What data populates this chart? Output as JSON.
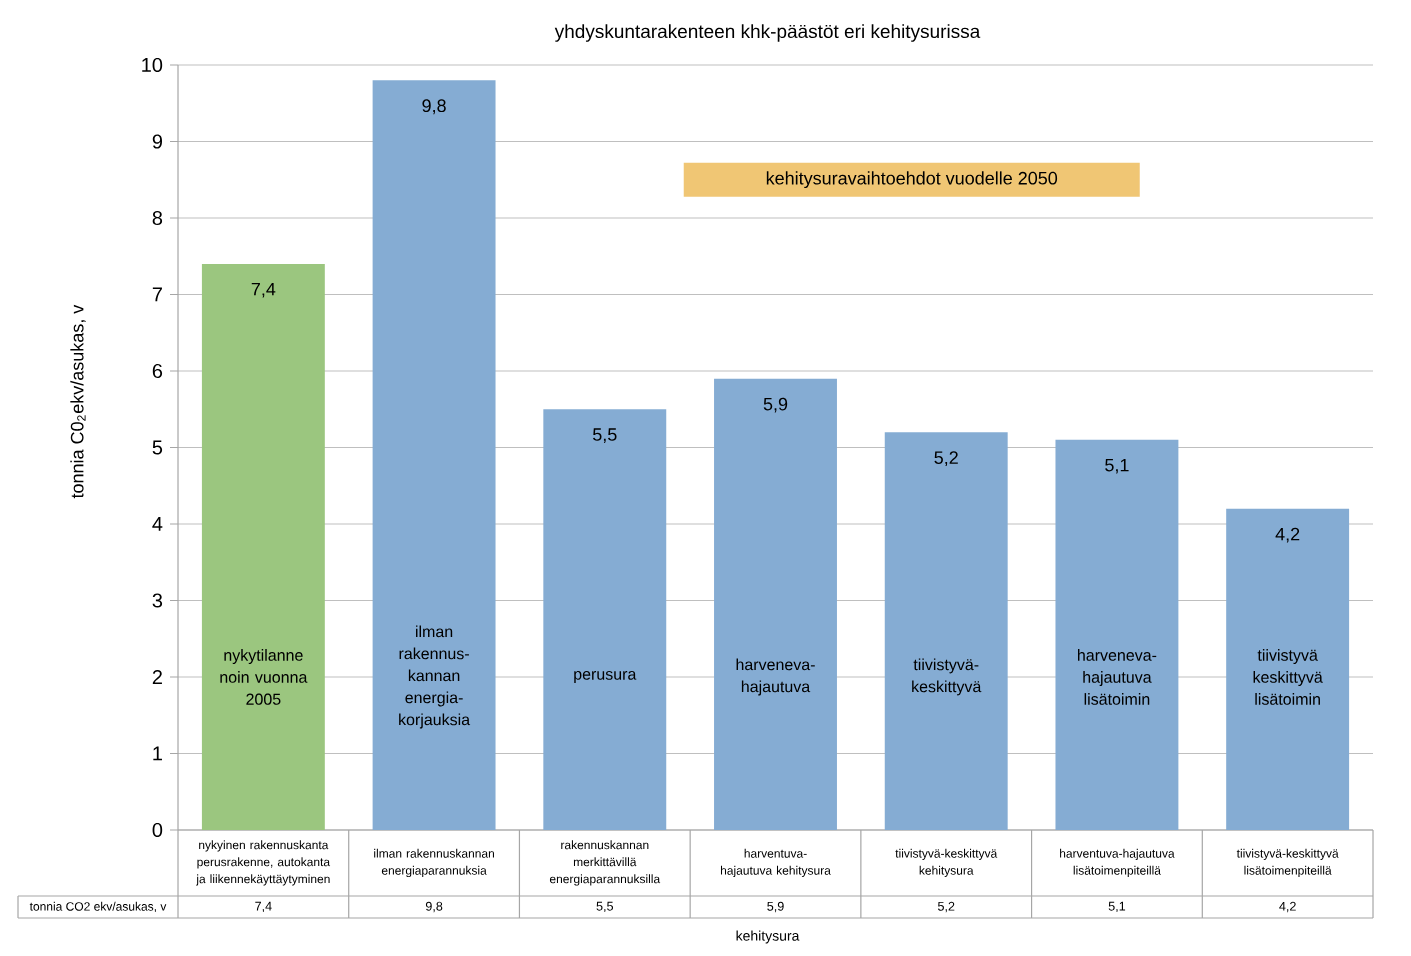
{
  "chart_data": {
    "type": "bar",
    "title": "yhdyskuntarakenteen khk-päästöt eri kehitysurissa",
    "xlabel": "kehitysura",
    "ylabel": "tonnia C0$_{2}$ekv/asukas, v",
    "categories": [
      "nykyinen rakennuskanta perusrakenne, autokanta ja liikennekäyttäytyminen",
      "ilman rakennuskannan energiaparannuksia",
      "rakennuskannan merkittävillä energiaparannuksilla",
      "harventuva-hajautuva kehitysura",
      "tiivistyvä-keskittyvä kehitysura",
      "harventuva-hajautuva lisätoimenpiteillä",
      "tiivistyvä-keskittyvä lisätoimenpiteillä"
    ],
    "values": [
      7.4,
      9.8,
      5.5,
      5.9,
      5.2,
      5.1,
      4.2
    ],
    "value_labels": [
      "7,4",
      "9,8",
      "5,5",
      "5,9",
      "5,2",
      "5,1",
      "4,2"
    ],
    "colors": [
      "#9bc67f",
      "#85acd3",
      "#85acd3",
      "#85acd3",
      "#85acd3",
      "#85acd3",
      "#85acd3"
    ],
    "ylim": [
      0,
      10
    ],
    "yticks": [
      0,
      1,
      2,
      3,
      4,
      5,
      6,
      7,
      8,
      9,
      10
    ],
    "grid": "y",
    "annotations": [
      "nykytilanne noin vuonna 2005",
      "ilman rakennus-kannan energia-korjauksia",
      "perusura",
      "harveneva-hajautuva",
      "tiivistyvä-keskittyvä",
      "harveneva-hajautuva lisätoimin",
      "tiivistyvä keskittyvä lisätoimin",
      "kehitysuravaihtoehdot vuodelle 2050",
      "tonnia CO2 ekv/asukas, v"
    ]
  }
}
